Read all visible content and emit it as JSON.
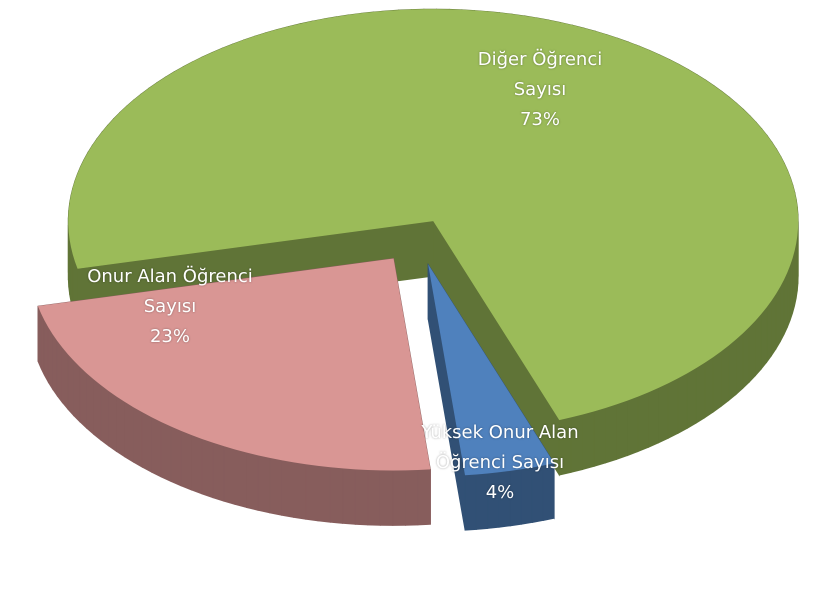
{
  "chart_data": {
    "type": "pie",
    "categories": [
      "Diğer Öğrenci Sayısı",
      "Yüksek Onur Alan Öğrenci Sayısı",
      "Onur Alan Öğrenci Sayısı"
    ],
    "values": [
      73,
      4,
      23
    ],
    "value_labels": [
      "73%",
      "4%",
      "23%"
    ],
    "colors": [
      "#9bbb59",
      "#4f81bd",
      "#d99694"
    ]
  }
}
